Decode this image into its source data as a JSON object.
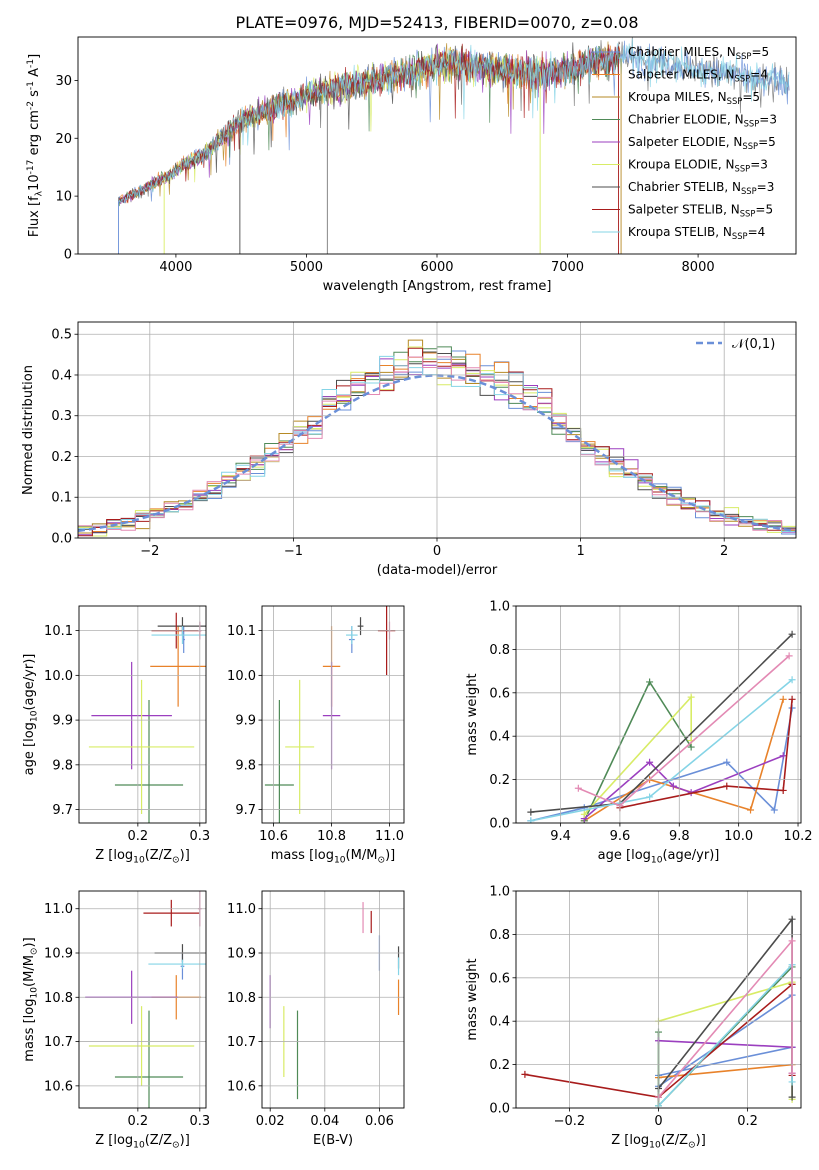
{
  "figure_title": "PLATE=0976, MJD=52413, FIBERID=0070, z=0.08",
  "colors": [
    "#6a8fd8",
    "#e8822a",
    "#b68a24",
    "#4f8a57",
    "#9b3fbf",
    "#d8ec66",
    "#4c4c4c",
    "#a81c1c",
    "#85d4e6",
    "#7a7a7a",
    "#e38ab4"
  ],
  "chart_data": [
    {
      "id": "spectrum",
      "type": "line",
      "title": "PLATE=0976, MJD=52413, FIBERID=0070, z=0.08",
      "xlabel": "wavelength [Angstrom, rest frame]",
      "ylabel": "Flux [f$_\\lambda$10$^{-17}$ erg cm$^{-2}$ s$^{-1}$ A$^{-1}$]",
      "xlim": [
        3250,
        8750
      ],
      "ylim": [
        0,
        37.5
      ],
      "xticks": [
        4000,
        5000,
        6000,
        7000,
        8000
      ],
      "yticks": [
        0,
        10,
        20,
        30
      ],
      "grid": false,
      "legend_position": "right",
      "continuum": {
        "x": [
          3550,
          3700,
          3850,
          3950,
          4050,
          4200,
          4350,
          4500,
          4700,
          4900,
          5100,
          5300,
          5500,
          5700,
          5900,
          6100,
          6300,
          6500,
          6700,
          6900,
          7100,
          7300,
          7500,
          7700,
          7900,
          8100,
          8300,
          8500,
          8700
        ],
        "y": [
          9,
          10.5,
          12.5,
          13.5,
          15.5,
          17,
          20,
          23,
          25,
          26.5,
          28,
          29,
          30,
          31,
          32,
          33,
          32.5,
          32,
          31.5,
          31.5,
          32.5,
          33.5,
          34,
          33.5,
          32.5,
          31.5,
          31,
          30,
          30
        ]
      },
      "legend": [
        {
          "label": "Chabrier MILES, N$_{SSP}$=5"
        },
        {
          "label": "Salpeter MILES, N$_{SSP}$=4"
        },
        {
          "label": "Kroupa MILES, N$_{SSP}$=5"
        },
        {
          "label": "Chabrier ELODIE, N$_{SSP}$=3"
        },
        {
          "label": "Salpeter ELODIE, N$_{SSP}$=5"
        },
        {
          "label": "Kroupa ELODIE, N$_{SSP}$=3"
        },
        {
          "label": "Chabrier STELIB, N$_{SSP}$=3"
        },
        {
          "label": "Salpeter STELIB, N$_{SSP}$=5"
        },
        {
          "label": "Kroupa STELIB, N$_{SSP}$=4"
        }
      ]
    },
    {
      "id": "residuals",
      "type": "histogram",
      "xlabel": "(data-model)/error",
      "ylabel": "Normed distribution",
      "xlim": [
        -2.5,
        2.5
      ],
      "ylim": [
        0,
        0.53
      ],
      "xticks": [
        -2,
        -1,
        0,
        1,
        2
      ],
      "yticks": [
        0.0,
        0.1,
        0.2,
        0.3,
        0.4,
        0.5
      ],
      "grid": true,
      "legend_position": "top-right",
      "reference_label": "$\\mathcal{N}(0,1)$",
      "bin_width": 0.1
    },
    {
      "id": "age-vs-z",
      "type": "scatter",
      "xlabel": "Z [log$_{10}$(Z/Z$_\\odot$)]",
      "ylabel": "age  [log$_{10}$(age/yr)]",
      "xlim": [
        0.105,
        0.31
      ],
      "ylim": [
        9.67,
        10.155
      ],
      "xticks": [
        0.2,
        0.3
      ],
      "yticks": [
        9.7,
        9.8,
        9.9,
        10.0,
        10.1
      ],
      "grid": true,
      "points": [
        {
          "c": 0,
          "x": 0.274,
          "y": 10.08,
          "xe": 0.002,
          "ye": 0.03
        },
        {
          "c": 1,
          "x": 0.265,
          "y": 10.02,
          "xe": 0.045,
          "ye": 0.09
        },
        {
          "c": 3,
          "x": 0.218,
          "y": 9.755,
          "xe": 0.055,
          "ye": 0.19
        },
        {
          "c": 4,
          "x": 0.19,
          "y": 9.91,
          "xe": 0.065,
          "ye": 0.12
        },
        {
          "c": 5,
          "x": 0.206,
          "y": 9.84,
          "xe": 0.085,
          "ye": 0.15
        },
        {
          "c": 6,
          "x": 0.272,
          "y": 10.11,
          "xe": 0.04,
          "ye": 0.02
        },
        {
          "c": 7,
          "x": 0.262,
          "y": 10.1,
          "xe": 0.04,
          "ye": 0.04
        },
        {
          "c": 8,
          "x": 0.272,
          "y": 10.09,
          "xe": 0.05,
          "ye": 0.02
        },
        {
          "c": 10,
          "x": 0.3,
          "y": 10.1,
          "xe": 0.003,
          "ye": 0.02
        }
      ]
    },
    {
      "id": "age-vs-mass",
      "type": "scatter",
      "xlabel": "mass [log$_{10}$(M/M$_\\odot$)]",
      "ylabel": "",
      "xlim": [
        10.56,
        11.05
      ],
      "ylim": [
        9.67,
        10.155
      ],
      "xticks": [
        10.6,
        10.8,
        11.0
      ],
      "yticks": [
        9.7,
        9.8,
        9.9,
        10.0,
        10.1
      ],
      "grid": true,
      "points": [
        {
          "c": 0,
          "x": 10.87,
          "y": 10.08,
          "xe": 0.01,
          "ye": 0.03
        },
        {
          "c": 1,
          "x": 10.8,
          "y": 10.02,
          "xe": 0.03,
          "ye": 0.09
        },
        {
          "c": 3,
          "x": 10.62,
          "y": 9.755,
          "xe": 0.05,
          "ye": 0.19
        },
        {
          "c": 4,
          "x": 10.8,
          "y": 9.91,
          "xe": 0.03,
          "ye": 0.12
        },
        {
          "c": 5,
          "x": 10.69,
          "y": 9.84,
          "xe": 0.05,
          "ye": 0.15
        },
        {
          "c": 6,
          "x": 10.9,
          "y": 10.11,
          "xe": 0.01,
          "ye": 0.02
        },
        {
          "c": 7,
          "x": 10.99,
          "y": 10.1,
          "xe": 0.03,
          "ye": 0.1
        },
        {
          "c": 8,
          "x": 10.87,
          "y": 10.09,
          "xe": 0.02,
          "ye": 0.02
        },
        {
          "c": 10,
          "x": 11.0,
          "y": 10.1,
          "xe": 0.004,
          "ye": 0.02
        }
      ]
    },
    {
      "id": "weight-vs-age",
      "type": "line",
      "xlabel": "age  [log$_{10}$(age/yr)]",
      "ylabel": "mass weight",
      "xlim": [
        9.25,
        10.21
      ],
      "ylim": [
        0,
        1.0
      ],
      "xticks": [
        9.4,
        9.6,
        9.8,
        10.0,
        10.2
      ],
      "yticks": [
        0.0,
        0.2,
        0.4,
        0.6,
        0.8,
        1.0
      ],
      "grid": true,
      "series": [
        {
          "c": 0,
          "x": [
            9.3,
            9.48,
            9.96,
            10.12,
            10.18
          ],
          "y": [
            0.01,
            0.07,
            0.28,
            0.06,
            0.53
          ]
        },
        {
          "c": 1,
          "x": [
            9.48,
            9.7,
            10.04,
            10.15
          ],
          "y": [
            0.01,
            0.2,
            0.06,
            0.57
          ]
        },
        {
          "c": 3,
          "x": [
            9.48,
            9.7,
            9.84
          ],
          "y": [
            0.01,
            0.65,
            0.35
          ]
        },
        {
          "c": 4,
          "x": [
            9.48,
            9.7,
            9.78,
            9.84,
            10.15
          ],
          "y": [
            0.02,
            0.28,
            0.17,
            0.14,
            0.31
          ]
        },
        {
          "c": 5,
          "x": [
            9.48,
            9.84,
            9.84
          ],
          "y": [
            0.04,
            0.58,
            0.38
          ]
        },
        {
          "c": 6,
          "x": [
            9.3,
            9.6,
            10.18
          ],
          "y": [
            0.05,
            0.09,
            0.87
          ]
        },
        {
          "c": 7,
          "x": [
            9.6,
            9.96,
            10.15,
            10.18
          ],
          "y": [
            0.07,
            0.17,
            0.15,
            0.57
          ]
        },
        {
          "c": 8,
          "x": [
            9.3,
            9.7,
            10.18
          ],
          "y": [
            0.01,
            0.12,
            0.66
          ]
        },
        {
          "c": 10,
          "x": [
            9.46,
            9.6,
            10.17
          ],
          "y": [
            0.16,
            0.08,
            0.77
          ]
        }
      ]
    },
    {
      "id": "mass-vs-z",
      "type": "scatter",
      "xlabel": "Z [log$_{10}$(Z/Z$_\\odot$)]",
      "ylabel": "mass [log$_{10}$(M/M$_\\odot$)]",
      "xlim": [
        0.105,
        0.31
      ],
      "ylim": [
        10.55,
        11.04
      ],
      "xticks": [
        0.2,
        0.3
      ],
      "yticks": [
        10.6,
        10.7,
        10.8,
        10.9,
        11.0
      ],
      "grid": true,
      "points": [
        {
          "c": 0,
          "x": 0.272,
          "y": 10.87,
          "xe": 0.003,
          "ye": 0.03
        },
        {
          "c": 1,
          "x": 0.262,
          "y": 10.8,
          "xe": 0.04,
          "ye": 0.05
        },
        {
          "c": 3,
          "x": 0.218,
          "y": 10.62,
          "xe": 0.055,
          "ye": 0.15
        },
        {
          "c": 4,
          "x": 0.19,
          "y": 10.8,
          "xe": 0.075,
          "ye": 0.06
        },
        {
          "c": 5,
          "x": 0.206,
          "y": 10.69,
          "xe": 0.085,
          "ye": 0.09
        },
        {
          "c": 6,
          "x": 0.272,
          "y": 10.9,
          "xe": 0.045,
          "ye": 0.02
        },
        {
          "c": 7,
          "x": 0.254,
          "y": 10.99,
          "xe": 0.045,
          "ye": 0.03
        },
        {
          "c": 8,
          "x": 0.272,
          "y": 10.875,
          "xe": 0.055,
          "ye": 0.01
        },
        {
          "c": 10,
          "x": 0.3,
          "y": 11.0,
          "xe": 0.003,
          "ye": 0.04
        }
      ]
    },
    {
      "id": "mass-vs-ebv",
      "type": "scatter",
      "xlabel": "E(B-V)",
      "ylabel": "",
      "xlim": [
        0.017,
        0.069
      ],
      "ylim": [
        10.55,
        11.04
      ],
      "xticks": [
        0.02,
        0.04,
        0.06
      ],
      "yticks": [
        10.6,
        10.7,
        10.8,
        10.9,
        11.0
      ],
      "grid": true,
      "points": [
        {
          "c": 0,
          "x": 0.06,
          "y": 10.9,
          "xe": 0,
          "ye": 0.04
        },
        {
          "c": 1,
          "x": 0.067,
          "y": 10.8,
          "xe": 0,
          "ye": 0.04
        },
        {
          "c": 3,
          "x": 0.03,
          "y": 10.67,
          "xe": 0,
          "ye": 0.1
        },
        {
          "c": 4,
          "x": 0.02,
          "y": 10.79,
          "xe": 0,
          "ye": 0.06
        },
        {
          "c": 5,
          "x": 0.025,
          "y": 10.7,
          "xe": 0,
          "ye": 0.08
        },
        {
          "c": 6,
          "x": 0.067,
          "y": 10.89,
          "xe": 0,
          "ye": 0.025
        },
        {
          "c": 7,
          "x": 0.057,
          "y": 10.97,
          "xe": 0,
          "ye": 0.025
        },
        {
          "c": 8,
          "x": 0.067,
          "y": 10.87,
          "xe": 0,
          "ye": 0.02
        },
        {
          "c": 10,
          "x": 0.054,
          "y": 10.98,
          "xe": 0,
          "ye": 0.035
        }
      ]
    },
    {
      "id": "weight-vs-z",
      "type": "line",
      "xlabel": "Z [log$_{10}$(Z/Z$_\\odot$)]",
      "ylabel": "mass weight",
      "xlim": [
        -0.32,
        0.32
      ],
      "ylim": [
        0,
        1.0
      ],
      "xticks": [
        -0.2,
        0.0,
        0.2
      ],
      "yticks": [
        0.0,
        0.2,
        0.4,
        0.6,
        0.8,
        1.0
      ],
      "grid": true,
      "series": [
        {
          "c": 0,
          "x": [
            0.0,
            0.3,
            0.3,
            0.0
          ],
          "y": [
            0.15,
            0.28,
            0.52,
            0.1
          ]
        },
        {
          "c": 1,
          "x": [
            0.0,
            0.3,
            0.3
          ],
          "y": [
            0.14,
            0.2,
            0.57
          ]
        },
        {
          "c": 3,
          "x": [
            0.0,
            0.0,
            0.3
          ],
          "y": [
            0.35,
            0.01,
            0.65
          ]
        },
        {
          "c": 4,
          "x": [
            0.0,
            0.3,
            0.3
          ],
          "y": [
            0.31,
            0.28,
            0.16
          ]
        },
        {
          "c": 5,
          "x": [
            0.0,
            0.3,
            0.3
          ],
          "y": [
            0.4,
            0.58,
            0.04
          ]
        },
        {
          "c": 6,
          "x": [
            0.0,
            0.3,
            0.3
          ],
          "y": [
            0.09,
            0.87,
            0.05
          ]
        },
        {
          "c": 7,
          "x": [
            -0.3,
            0.0,
            0.3,
            0.3
          ],
          "y": [
            0.155,
            0.05,
            0.57,
            0.15
          ]
        },
        {
          "c": 8,
          "x": [
            0.0,
            0.3,
            0.3
          ],
          "y": [
            0.01,
            0.66,
            0.12
          ]
        },
        {
          "c": 10,
          "x": [
            0.0,
            0.3,
            0.3
          ],
          "y": [
            0.05,
            0.77,
            0.16
          ]
        }
      ]
    }
  ]
}
